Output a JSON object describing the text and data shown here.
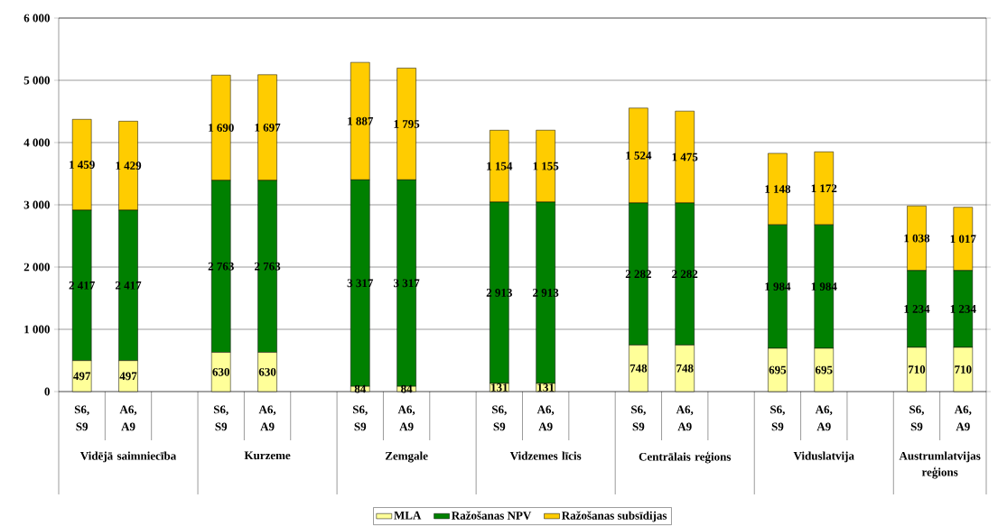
{
  "chart_data": {
    "type": "bar",
    "stacked": true,
    "categories": [
      "S6, S9",
      "A6, A9",
      null,
      "S6, S9",
      "A6, A9",
      null,
      "S6, S9",
      "A6, A9",
      null,
      "S6, S9",
      "A6, A9",
      null,
      "S6, S9",
      "A6, A9",
      null,
      "S6, S9",
      "A6, A9",
      null,
      "S6, S9",
      "A6, A9"
    ],
    "series": [
      {
        "name": "MLA",
        "color": "#ffff99",
        "values": [
          497,
          497,
          null,
          630,
          630,
          null,
          84,
          84,
          null,
          131,
          131,
          null,
          748,
          748,
          null,
          695,
          695,
          null,
          710,
          710
        ],
        "value_labels": [
          "497",
          "497",
          null,
          "630",
          "630",
          null,
          "84",
          "84",
          null,
          "131",
          "131",
          null,
          "748",
          "748",
          null,
          "695",
          "695",
          null,
          "710",
          "710"
        ]
      },
      {
        "name": "Ražošanas NPV",
        "color": "#008000",
        "values": [
          2417,
          2417,
          null,
          2763,
          2763,
          null,
          3317,
          3317,
          null,
          2913,
          2913,
          null,
          2282,
          2282,
          null,
          1984,
          1984,
          null,
          1234,
          1234
        ],
        "value_labels": [
          "2 417",
          "2 417",
          null,
          "2 763",
          "2 763",
          null,
          "3 317",
          "3 317",
          null,
          "2 913",
          "2 913",
          null,
          "2 282",
          "2 282",
          null,
          "1 984",
          "1 984",
          null,
          "1 234",
          "1 234"
        ]
      },
      {
        "name": "Ražošanas subsīdijas",
        "color": "#ffcc00",
        "values": [
          1459,
          1429,
          null,
          1690,
          1697,
          null,
          1887,
          1795,
          null,
          1154,
          1155,
          null,
          1524,
          1475,
          null,
          1148,
          1172,
          null,
          1038,
          1017
        ],
        "value_labels": [
          "1 459",
          "1 429",
          null,
          "1 690",
          "1 697",
          null,
          "1 887",
          "1 795",
          null,
          "1 154",
          "1 155",
          null,
          "1 524",
          "1 475",
          null,
          "1 148",
          "1 172",
          null,
          "1 038",
          "1 017"
        ]
      }
    ],
    "annotations": [
      "Vidējā saimniecība",
      "Kurzeme",
      "Zemgale",
      "Vidzemes līcis",
      "Centrālais reģions",
      "Viduslatvija",
      "Austrumlatvijas reģions"
    ],
    "ylim": [
      0,
      6000
    ],
    "yticks": [
      0,
      {
        "value": 1000,
        "label": "1 000"
      },
      {
        "value": 2000,
        "label": "2 000"
      },
      {
        "value": 3000,
        "label": "3 000"
      },
      {
        "value": 4000,
        "label": "4 000"
      },
      {
        "value": 5000,
        "label": "5 000"
      },
      {
        "value": 6000,
        "label": "6 000"
      }
    ],
    "grid": "y",
    "legend": "bottom"
  }
}
